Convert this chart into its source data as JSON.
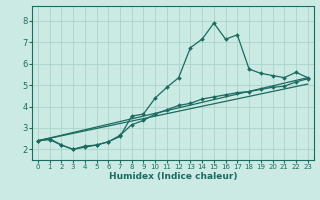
{
  "xlabel": "Humidex (Indice chaleur)",
  "ylabel": "",
  "xlim": [
    -0.5,
    23.5
  ],
  "ylim": [
    1.5,
    8.7
  ],
  "yticks": [
    2,
    3,
    4,
    5,
    6,
    7,
    8
  ],
  "xticks": [
    0,
    1,
    2,
    3,
    4,
    5,
    6,
    7,
    8,
    9,
    10,
    11,
    12,
    13,
    14,
    15,
    16,
    17,
    18,
    19,
    20,
    21,
    22,
    23
  ],
  "background_color": "#cceae4",
  "grid_color": "#aad4cc",
  "line_color": "#1a6b60",
  "line_width": 0.9,
  "marker_size": 2.0,
  "series": [
    {
      "x": [
        0,
        1,
        2,
        3,
        4,
        5,
        6,
        7,
        8,
        9,
        10,
        11,
        12,
        13,
        14,
        15,
        16,
        17,
        18,
        19,
        20,
        21,
        22,
        23
      ],
      "y": [
        2.4,
        2.5,
        2.2,
        2.0,
        2.15,
        2.2,
        2.35,
        2.6,
        3.55,
        3.65,
        4.4,
        4.9,
        5.35,
        6.75,
        7.15,
        7.9,
        7.15,
        7.35,
        5.75,
        5.55,
        5.45,
        5.35,
        5.6,
        5.35
      ],
      "has_markers": true
    },
    {
      "x": [
        0,
        1,
        2,
        3,
        4,
        5,
        6,
        7,
        8,
        9,
        10,
        11,
        12,
        13,
        14,
        15,
        16,
        17,
        18,
        19,
        20,
        21,
        22,
        23
      ],
      "y": [
        2.4,
        2.45,
        2.2,
        2.0,
        2.1,
        2.2,
        2.35,
        2.65,
        3.15,
        3.35,
        3.65,
        3.85,
        4.05,
        4.15,
        4.35,
        4.45,
        4.55,
        4.65,
        4.7,
        4.8,
        4.9,
        4.95,
        5.15,
        5.3
      ],
      "has_markers": true
    },
    {
      "x": [
        0,
        23
      ],
      "y": [
        2.4,
        5.35
      ],
      "has_markers": false
    },
    {
      "x": [
        0,
        23
      ],
      "y": [
        2.4,
        5.05
      ],
      "has_markers": false
    }
  ]
}
